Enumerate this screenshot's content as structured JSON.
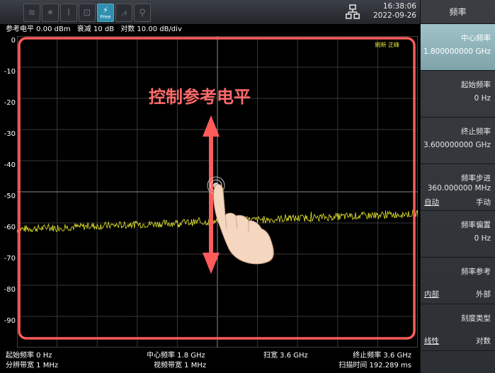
{
  "toolbar": {
    "free_icon_label": "Free",
    "time": "16:38:06",
    "date": "2022-09-26"
  },
  "status": {
    "ref_level": "参考电平 0.00 dBm",
    "atten": "衰减 10 dB",
    "scale": "对数 10.00 dB/div"
  },
  "plot": {
    "y_ticks": [
      "0",
      "-10",
      "-20",
      "-30",
      "-40",
      "-50",
      "-60",
      "-70",
      "-80",
      "-90"
    ],
    "indicator": "刷新 正峰",
    "overlay_text": "控制参考电平",
    "trace_color": "#e8e830",
    "highlight_color": "#ff5b5b"
  },
  "bottom": {
    "start_freq": "起始频率 0 Hz",
    "center_freq": "中心频率 1.8 GHz",
    "span": "扫宽 3.6 GHz",
    "stop_freq": "终止频率 3.6 GHz",
    "rbw": "分辨带宽 1 MHz",
    "vbw": "视频带宽 1 MHz",
    "sweep_time": "扫描时间 192.289 ms"
  },
  "sidebar": {
    "title": "频率",
    "keys": [
      {
        "label": "中心频率",
        "value": "1.800000000 GHz"
      },
      {
        "label": "起始频率",
        "value": "0 Hz"
      },
      {
        "label": "终止频率",
        "value": "3.600000000 GHz"
      },
      {
        "label": "频率步进",
        "value": "360.000000 MHz",
        "opt_left": "自动",
        "opt_right": "手动"
      },
      {
        "label": "频率偏置",
        "value": "0 Hz"
      },
      {
        "label": "频率参考",
        "opt_left": "内部",
        "opt_right": "外部"
      },
      {
        "label": "刻度类型",
        "opt_left": "线性",
        "opt_right": "对数"
      }
    ]
  }
}
